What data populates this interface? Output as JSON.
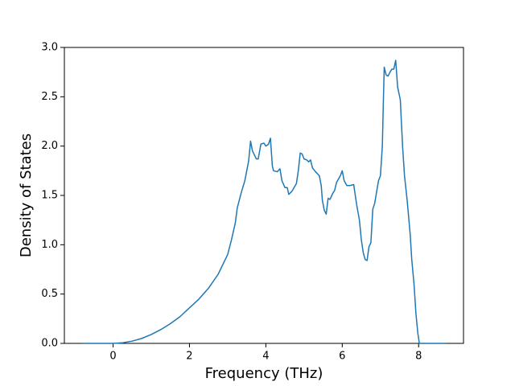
{
  "chart_data": {
    "type": "line",
    "xlabel": "Frequency (THz)",
    "ylabel": "Density of States",
    "x": [
      -0.8,
      -0.4,
      0,
      0.25,
      0.5,
      0.75,
      1.0,
      1.25,
      1.5,
      1.75,
      2.0,
      2.25,
      2.5,
      2.75,
      3.0,
      3.1,
      3.2,
      3.25,
      3.35,
      3.45,
      3.55,
      3.6,
      3.65,
      3.75,
      3.8,
      3.87,
      3.95,
      4.0,
      4.07,
      4.12,
      4.17,
      4.2,
      4.3,
      4.37,
      4.42,
      4.5,
      4.56,
      4.6,
      4.68,
      4.8,
      4.85,
      4.9,
      4.95,
      5.0,
      5.07,
      5.12,
      5.17,
      5.22,
      5.3,
      5.4,
      5.45,
      5.48,
      5.53,
      5.58,
      5.63,
      5.68,
      5.75,
      5.8,
      5.85,
      5.95,
      6.0,
      6.05,
      6.12,
      6.2,
      6.3,
      6.38,
      6.45,
      6.5,
      6.55,
      6.6,
      6.65,
      6.7,
      6.75,
      6.8,
      6.85,
      6.95,
      7.0,
      7.05,
      7.08,
      7.1,
      7.15,
      7.2,
      7.25,
      7.3,
      7.35,
      7.4,
      7.45,
      7.52,
      7.58,
      7.63,
      7.7,
      7.78,
      7.82,
      7.88,
      7.93,
      7.98,
      8.02,
      8.3,
      8.7
    ],
    "series": [
      {
        "color": "#1f77b4",
        "values": [
          0,
          0,
          0,
          0.006,
          0.023,
          0.05,
          0.09,
          0.14,
          0.2,
          0.27,
          0.36,
          0.45,
          0.56,
          0.7,
          0.9,
          1.05,
          1.22,
          1.37,
          1.52,
          1.65,
          1.85,
          2.05,
          1.95,
          1.87,
          1.87,
          2.02,
          2.03,
          2.0,
          2.02,
          2.08,
          1.8,
          1.75,
          1.74,
          1.77,
          1.65,
          1.58,
          1.58,
          1.51,
          1.54,
          1.62,
          1.75,
          1.93,
          1.92,
          1.87,
          1.86,
          1.84,
          1.86,
          1.78,
          1.74,
          1.7,
          1.6,
          1.45,
          1.35,
          1.31,
          1.47,
          1.46,
          1.52,
          1.55,
          1.63,
          1.7,
          1.75,
          1.65,
          1.6,
          1.6,
          1.61,
          1.4,
          1.25,
          1.05,
          0.92,
          0.85,
          0.84,
          0.98,
          1.02,
          1.36,
          1.42,
          1.65,
          1.7,
          2.0,
          2.5,
          2.8,
          2.72,
          2.71,
          2.75,
          2.78,
          2.78,
          2.87,
          2.6,
          2.47,
          2.0,
          1.7,
          1.45,
          1.1,
          0.85,
          0.6,
          0.3,
          0.1,
          0.0,
          0,
          0
        ]
      }
    ],
    "xlim": [
      -1.275,
      9.175
    ],
    "xticks": [
      0,
      2,
      4,
      6,
      8
    ],
    "ylim": [
      0,
      3.0
    ],
    "yticks": [
      {
        "value": 0,
        "label": "0.0"
      },
      0.5,
      {
        "value": 1,
        "label": "1.0"
      },
      1.5,
      {
        "value": 2,
        "label": "2.0"
      },
      2.5,
      {
        "value": 3,
        "label": "3.0"
      }
    ]
  }
}
